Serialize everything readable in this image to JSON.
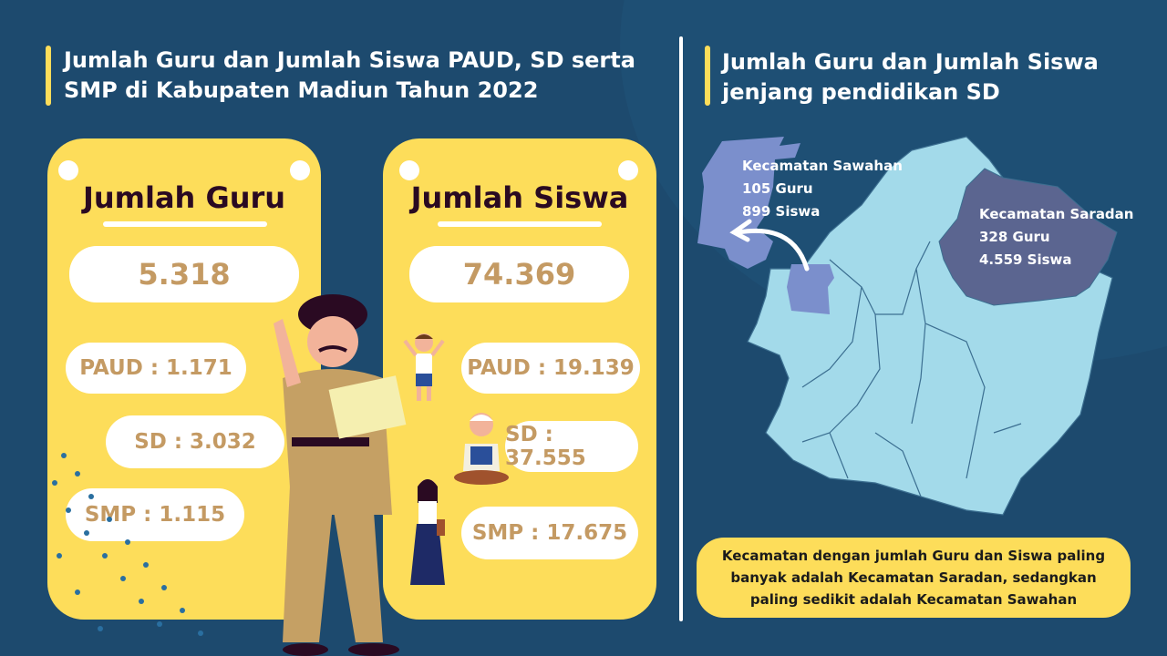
{
  "left": {
    "title": "Jumlah Guru dan Jumlah Siswa PAUD, SD serta SMP di Kabupaten Madiun Tahun 2022",
    "guru_card": {
      "title": "Jumlah Guru",
      "total": "5.318",
      "paud": "PAUD : 1.171",
      "sd": "SD : 3.032",
      "smp": "SMP : 1.115"
    },
    "siswa_card": {
      "title": "Jumlah Siswa",
      "total": "74.369",
      "paud": "PAUD : 19.139",
      "sd": "SD : 37.555",
      "smp": "SMP : 17.675"
    }
  },
  "right": {
    "title": "Jumlah Guru dan Jumlah Siswa jenjang pendidikan SD",
    "sawahan": {
      "name": "Kecamatan Sawahan",
      "guru": "105 Guru",
      "siswa": "899 Siswa"
    },
    "saradan": {
      "name": "Kecamatan Saradan",
      "guru": "328 Guru",
      "siswa": "4.559 Siswa"
    },
    "note": "Kecamatan dengan jumlah Guru dan Siswa paling banyak adalah Kecamatan Saradan, sedangkan paling sedikit adalah Kecamatan Sawahan"
  },
  "colors": {
    "background": "#1d4a6e",
    "card": "#fddd5a",
    "map_base": "#a3daea",
    "sawahan": "#7b8fcc",
    "saradan": "#5b6590",
    "number": "#c49a63"
  }
}
